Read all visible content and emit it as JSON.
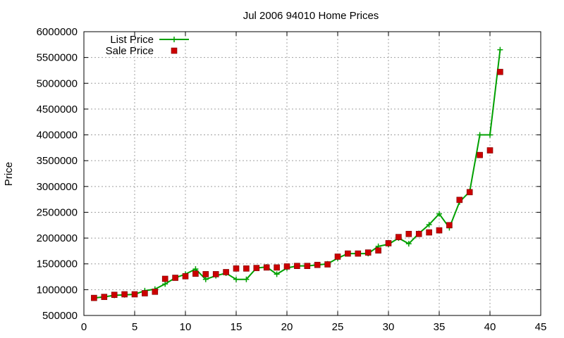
{
  "chart_data": {
    "type": "line",
    "title": "Jul 2006 94010 Home Prices",
    "xlabel": "",
    "ylabel": "Price",
    "xlim": [
      0,
      45
    ],
    "ylim": [
      500000,
      6000000
    ],
    "x_ticks": [
      0,
      5,
      10,
      15,
      20,
      25,
      30,
      35,
      40,
      45
    ],
    "y_ticks": [
      500000,
      1000000,
      1500000,
      2000000,
      2500000,
      3000000,
      3500000,
      4000000,
      4500000,
      5000000,
      5500000,
      6000000
    ],
    "grid": true,
    "legend_position": "top-left",
    "colors": {
      "list_price": "#00a000",
      "sale_price": "#cc0000"
    },
    "series": [
      {
        "name": "List Price",
        "style": "line-with-plus-markers",
        "color": "#00a000",
        "points": [
          [
            1,
            840000
          ],
          [
            2,
            860000
          ],
          [
            3,
            890000
          ],
          [
            4,
            900000
          ],
          [
            5,
            910000
          ],
          [
            6,
            980000
          ],
          [
            7,
            1010000
          ],
          [
            8,
            1110000
          ],
          [
            9,
            1230000
          ],
          [
            10,
            1300000
          ],
          [
            11,
            1400000
          ],
          [
            12,
            1200000
          ],
          [
            13,
            1270000
          ],
          [
            14,
            1320000
          ],
          [
            15,
            1200000
          ],
          [
            16,
            1200000
          ],
          [
            17,
            1420000
          ],
          [
            18,
            1440000
          ],
          [
            19,
            1300000
          ],
          [
            20,
            1420000
          ],
          [
            21,
            1460000
          ],
          [
            22,
            1460000
          ],
          [
            23,
            1480000
          ],
          [
            24,
            1500000
          ],
          [
            25,
            1610000
          ],
          [
            26,
            1700000
          ],
          [
            27,
            1700000
          ],
          [
            28,
            1700000
          ],
          [
            29,
            1840000
          ],
          [
            30,
            1880000
          ],
          [
            31,
            2000000
          ],
          [
            32,
            1890000
          ],
          [
            33,
            2090000
          ],
          [
            34,
            2260000
          ],
          [
            35,
            2470000
          ],
          [
            36,
            2200000
          ],
          [
            37,
            2700000
          ],
          [
            38,
            2900000
          ],
          [
            39,
            4000000
          ],
          [
            40,
            4000000
          ],
          [
            41,
            5650000
          ]
        ]
      },
      {
        "name": "Sale Price",
        "style": "square-markers",
        "color": "#cc0000",
        "points": [
          [
            1,
            840000
          ],
          [
            2,
            860000
          ],
          [
            3,
            900000
          ],
          [
            4,
            910000
          ],
          [
            5,
            910000
          ],
          [
            6,
            930000
          ],
          [
            7,
            960000
          ],
          [
            8,
            1210000
          ],
          [
            9,
            1230000
          ],
          [
            10,
            1260000
          ],
          [
            11,
            1310000
          ],
          [
            12,
            1300000
          ],
          [
            13,
            1300000
          ],
          [
            14,
            1340000
          ],
          [
            15,
            1410000
          ],
          [
            16,
            1410000
          ],
          [
            17,
            1420000
          ],
          [
            18,
            1430000
          ],
          [
            19,
            1430000
          ],
          [
            20,
            1450000
          ],
          [
            21,
            1460000
          ],
          [
            22,
            1460000
          ],
          [
            23,
            1480000
          ],
          [
            24,
            1490000
          ],
          [
            25,
            1640000
          ],
          [
            26,
            1700000
          ],
          [
            27,
            1700000
          ],
          [
            28,
            1720000
          ],
          [
            29,
            1760000
          ],
          [
            30,
            1900000
          ],
          [
            31,
            2020000
          ],
          [
            32,
            2080000
          ],
          [
            33,
            2080000
          ],
          [
            34,
            2110000
          ],
          [
            35,
            2150000
          ],
          [
            36,
            2250000
          ],
          [
            37,
            2740000
          ],
          [
            38,
            2890000
          ],
          [
            39,
            3610000
          ],
          [
            40,
            3700000
          ],
          [
            41,
            5220000
          ]
        ]
      }
    ]
  }
}
